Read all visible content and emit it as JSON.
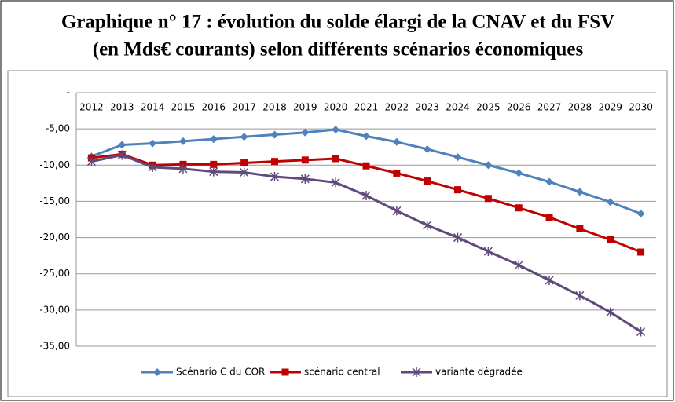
{
  "chart_data": {
    "type": "line",
    "title": [
      "Graphique n° 17 : évolution du solde élargi de la CNAV et du FSV",
      "(en Mds€ courants)  selon différents scénarios économiques"
    ],
    "categories": [
      "2012",
      "2013",
      "2014",
      "2015",
      "2016",
      "2017",
      "2018",
      "2019",
      "2020",
      "2021",
      "2022",
      "2023",
      "2024",
      "2025",
      "2026",
      "2027",
      "2028",
      "2029",
      "2030"
    ],
    "series": [
      {
        "name": "Scénario C du COR",
        "color": "#4f81bd",
        "marker": "diamond",
        "values": [
          -8.8,
          -7.2,
          -7.0,
          -6.7,
          -6.4,
          -6.1,
          -5.8,
          -5.5,
          -5.1,
          -6.0,
          -6.8,
          -7.8,
          -8.9,
          -10.0,
          -11.1,
          -12.3,
          -13.7,
          -15.1,
          -16.7
        ]
      },
      {
        "name": "scénario central",
        "color": "#c00000",
        "marker": "square",
        "values": [
          -9.0,
          -8.5,
          -10.0,
          -9.9,
          -9.9,
          -9.7,
          -9.5,
          -9.3,
          -9.1,
          -10.1,
          -11.1,
          -12.2,
          -13.4,
          -14.6,
          -15.9,
          -17.2,
          -18.8,
          -20.3,
          -22.0
        ]
      },
      {
        "name": "variante dégradée",
        "color": "#604a7b",
        "marker": "star",
        "values": [
          -9.5,
          -8.6,
          -10.3,
          -10.5,
          -10.9,
          -11.0,
          -11.6,
          -11.9,
          -12.4,
          -14.2,
          -16.3,
          -18.3,
          -20.0,
          -21.9,
          -23.8,
          -25.9,
          -28.0,
          -30.3,
          -33.0
        ]
      }
    ],
    "ylim": [
      -35,
      0
    ],
    "yticks": [
      {
        "value": 0,
        "label": "-"
      },
      {
        "value": -5,
        "label": "-5,00"
      },
      {
        "value": -10,
        "label": "-10,00"
      },
      {
        "value": -15,
        "label": "-15,00"
      },
      {
        "value": -20,
        "label": "-20,00"
      },
      {
        "value": -25,
        "label": "-25,00"
      },
      {
        "value": -30,
        "label": "-30,00"
      },
      {
        "value": -35,
        "label": "-35,00"
      }
    ],
    "grid": true,
    "legend": "bottom"
  }
}
